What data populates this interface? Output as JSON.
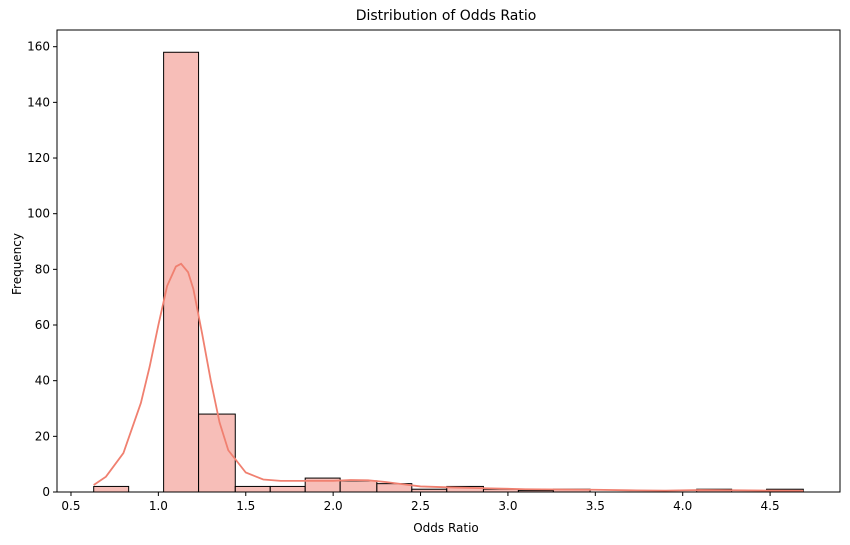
{
  "chart_data": {
    "type": "bar",
    "title": "Distribution of Odds Ratio",
    "xlabel": "Odds Ratio",
    "ylabel": "Frequency",
    "xlim": [
      0.42,
      4.9
    ],
    "ylim": [
      0,
      166
    ],
    "xticks": [
      0.5,
      1.0,
      1.5,
      2.0,
      2.5,
      3.0,
      3.5,
      4.0,
      4.5
    ],
    "xtick_labels": [
      "0.5",
      "1.0",
      "1.5",
      "2.0",
      "2.5",
      "3.0",
      "3.5",
      "4.0",
      "4.5"
    ],
    "yticks": [
      0,
      20,
      40,
      60,
      80,
      100,
      120,
      140,
      160
    ],
    "ytick_labels": [
      "0",
      "20",
      "40",
      "60",
      "80",
      "100",
      "120",
      "140",
      "160"
    ],
    "bins": [
      {
        "x0": 0.63,
        "x1": 0.83,
        "count": 2
      },
      {
        "x0": 0.83,
        "x1": 1.03,
        "count": 0
      },
      {
        "x0": 1.03,
        "x1": 1.23,
        "count": 158
      },
      {
        "x0": 1.23,
        "x1": 1.44,
        "count": 28
      },
      {
        "x0": 1.44,
        "x1": 1.64,
        "count": 2
      },
      {
        "x0": 1.64,
        "x1": 1.84,
        "count": 2
      },
      {
        "x0": 1.84,
        "x1": 2.04,
        "count": 5
      },
      {
        "x0": 2.04,
        "x1": 2.25,
        "count": 4
      },
      {
        "x0": 2.25,
        "x1": 2.45,
        "count": 3
      },
      {
        "x0": 2.45,
        "x1": 2.65,
        "count": 1
      },
      {
        "x0": 2.65,
        "x1": 2.86,
        "count": 2
      },
      {
        "x0": 2.86,
        "x1": 3.06,
        "count": 1
      },
      {
        "x0": 3.06,
        "x1": 3.26,
        "count": 0.5
      },
      {
        "x0": 3.26,
        "x1": 3.47,
        "count": 1
      },
      {
        "x0": 3.47,
        "x1": 3.67,
        "count": 0
      },
      {
        "x0": 3.67,
        "x1": 3.87,
        "count": 0
      },
      {
        "x0": 3.87,
        "x1": 4.08,
        "count": 0
      },
      {
        "x0": 4.08,
        "x1": 4.28,
        "count": 1
      },
      {
        "x0": 4.28,
        "x1": 4.48,
        "count": 0
      },
      {
        "x0": 4.48,
        "x1": 4.69,
        "count": 1
      }
    ],
    "kde": {
      "x": [
        0.63,
        0.7,
        0.8,
        0.9,
        0.95,
        1.0,
        1.05,
        1.1,
        1.13,
        1.17,
        1.2,
        1.25,
        1.3,
        1.35,
        1.4,
        1.5,
        1.6,
        1.7,
        1.8,
        1.9,
        2.0,
        2.1,
        2.2,
        2.3,
        2.4,
        2.5,
        2.7,
        2.9,
        3.1,
        3.3,
        3.5,
        3.7,
        3.9,
        4.1,
        4.3,
        4.5,
        4.69
      ],
      "y": [
        2.5,
        5.5,
        14,
        32,
        45,
        60,
        74,
        81,
        82,
        79,
        73,
        57,
        40,
        25,
        15,
        7,
        4.5,
        4,
        4,
        4,
        4,
        4.3,
        4.2,
        3.6,
        2.8,
        2,
        1.6,
        1.3,
        1,
        0.9,
        0.8,
        0.6,
        0.5,
        0.7,
        0.6,
        0.5,
        0.4
      ]
    },
    "colors": {
      "bar_fill": "#f4a29a",
      "bar_edge": "#000000",
      "kde_line": "#f08070"
    },
    "grid": false,
    "legend": "none"
  }
}
